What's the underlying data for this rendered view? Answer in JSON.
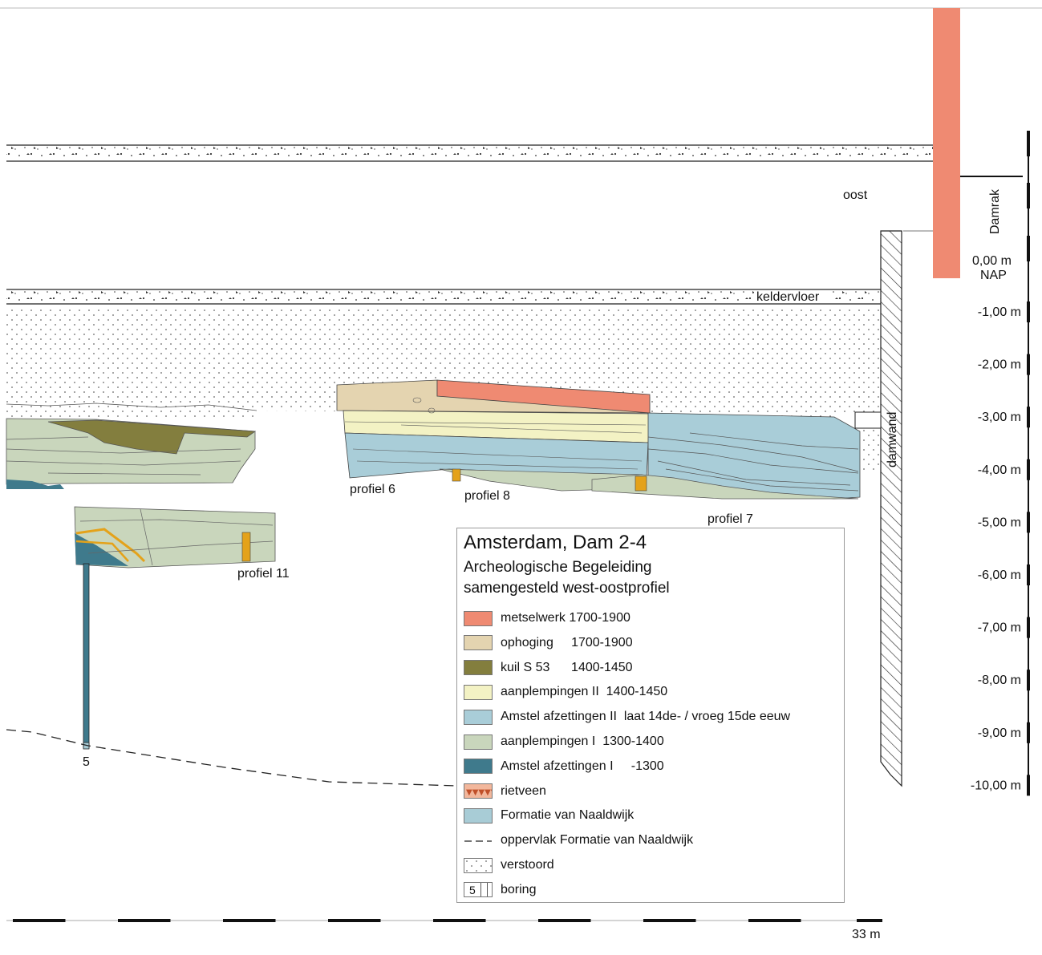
{
  "labels": {
    "oost": "oost",
    "damrak": "Damrak",
    "nap_zero": "0,00 m",
    "nap": "NAP",
    "keldervloer": "keldervloer",
    "damwand": "damwand",
    "profiel6": "profiel 6",
    "profiel7": "profiel 7",
    "profiel8": "profiel 8",
    "profiel11": "profiel 11",
    "boring_number": "5",
    "scale_end": "33 m"
  },
  "depth_scale": [
    "-1,00 m",
    "-2,00 m",
    "-3,00 m",
    "-4,00 m",
    "-5,00 m",
    "-6,00 m",
    "-7,00 m",
    "-8,00 m",
    "-9,00 m",
    "-10,00 m"
  ],
  "legend": {
    "title": "Amsterdam, Dam 2-4",
    "subtitle1": "Archeologische Begeleiding",
    "subtitle2": "samengesteld west-oostprofiel",
    "items": [
      {
        "label": "metselwerk 1700-1900",
        "swatch": "#ef8a72"
      },
      {
        "label": "ophoging     1700-1900",
        "swatch": "#e4d4b0"
      },
      {
        "label": "kuil S 53      1400-1450",
        "swatch": "#837e3e"
      },
      {
        "label": "aanplempingen II  1400-1450",
        "swatch": "#f3f2c4"
      },
      {
        "label": "Amstel afzettingen II  laat 14de- / vroeg 15de eeuw",
        "swatch": "#a9cdd8"
      },
      {
        "label": "aanplempingen I  1300-1400",
        "swatch": "#c9d6bc"
      },
      {
        "label": "Amstel afzettingen I     -1300",
        "swatch": "#3f7a8c"
      },
      {
        "label": "rietveen",
        "swatch": "#f2b79c"
      },
      {
        "label": "Formatie van Naaldwijk",
        "swatch": "#a8ccd6"
      },
      {
        "label": "oppervlak Formatie van Naaldwijk",
        "swatch": "dash-line"
      },
      {
        "label": "verstoord",
        "swatch": "dots"
      },
      {
        "label": "boring",
        "swatch": "boring"
      }
    ],
    "boring_swatch_number": "5"
  },
  "colors": {
    "metselwerk": "#ef8a72",
    "ophoging": "#e4d4b0",
    "kuil": "#837e3e",
    "aanplemping2": "#f3f2c4",
    "amstel2": "#a9cdd8",
    "aanplemping1": "#c9d6bc",
    "amstel1": "#3f7a8c",
    "naaldwijk": "#a8ccd6",
    "wood": "#e4a21a"
  }
}
